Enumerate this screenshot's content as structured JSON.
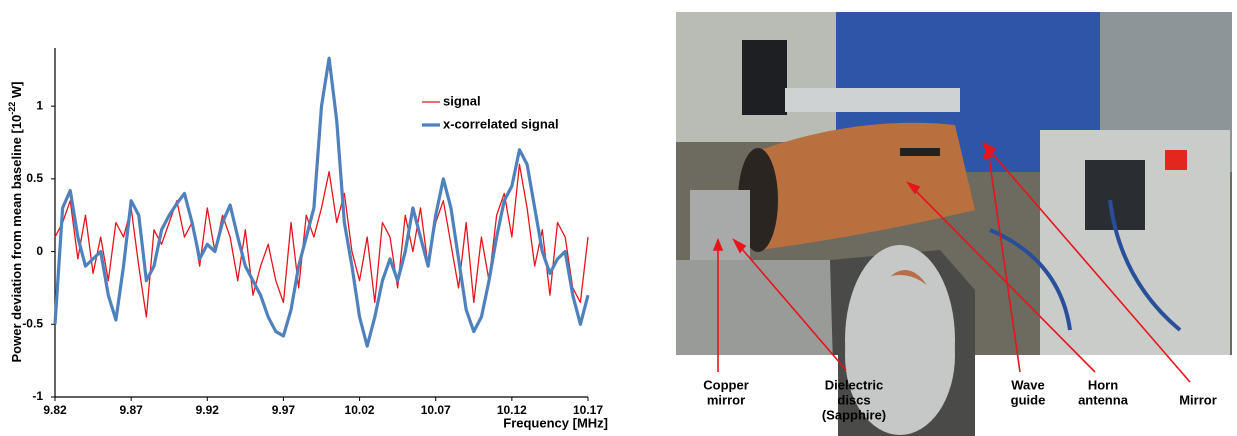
{
  "chart_data": {
    "type": "line",
    "ylabel": "Power deviation from mean baseline  [10",
    "ylabel_exponent": "-22",
    "ylabel_unit": " W]",
    "xlabel": "Frequency  [MHz]",
    "x": [
      9.82,
      9.825,
      9.83,
      9.835,
      9.84,
      9.845,
      9.85,
      9.855,
      9.86,
      9.865,
      9.87,
      9.875,
      9.88,
      9.885,
      9.89,
      9.895,
      9.9,
      9.905,
      9.91,
      9.915,
      9.92,
      9.925,
      9.93,
      9.935,
      9.94,
      9.945,
      9.95,
      9.955,
      9.96,
      9.965,
      9.97,
      9.975,
      9.98,
      9.985,
      9.99,
      9.995,
      10.0,
      10.005,
      10.01,
      10.015,
      10.02,
      10.025,
      10.03,
      10.035,
      10.04,
      10.045,
      10.05,
      10.055,
      10.06,
      10.065,
      10.07,
      10.075,
      10.08,
      10.085,
      10.09,
      10.095,
      10.1,
      10.105,
      10.11,
      10.115,
      10.12,
      10.125,
      10.13,
      10.135,
      10.14,
      10.145,
      10.15,
      10.155,
      10.16,
      10.165,
      10.17
    ],
    "series": [
      {
        "name": "signal",
        "color": "#e8141c",
        "width": 1.3,
        "values": [
          0.1,
          0.2,
          0.35,
          -0.05,
          0.25,
          -0.15,
          0.1,
          -0.2,
          0.2,
          0.1,
          0.3,
          -0.1,
          -0.45,
          0.15,
          0.05,
          0.2,
          0.35,
          0.1,
          0.2,
          -0.1,
          0.3,
          0.0,
          0.25,
          0.1,
          -0.2,
          0.15,
          -0.3,
          -0.1,
          0.05,
          -0.2,
          -0.35,
          0.2,
          -0.25,
          0.25,
          0.1,
          0.3,
          0.55,
          0.2,
          0.4,
          0.0,
          -0.2,
          0.1,
          -0.35,
          0.2,
          0.1,
          -0.25,
          0.25,
          0.0,
          0.3,
          -0.1,
          0.2,
          0.35,
          0.05,
          -0.25,
          0.2,
          -0.35,
          0.1,
          -0.2,
          0.25,
          0.4,
          0.1,
          0.6,
          0.3,
          -0.1,
          0.15,
          -0.3,
          0.2,
          0.1,
          -0.25,
          -0.35,
          0.1
        ]
      },
      {
        "name": "x-correlated signal",
        "color": "#4f81bd",
        "width": 3.2,
        "values": [
          -0.5,
          0.3,
          0.42,
          0.1,
          -0.1,
          -0.05,
          0.0,
          -0.3,
          -0.47,
          -0.1,
          0.35,
          0.25,
          -0.2,
          -0.1,
          0.15,
          0.25,
          0.33,
          0.4,
          0.2,
          -0.05,
          0.05,
          0.0,
          0.2,
          0.32,
          0.1,
          -0.1,
          -0.2,
          -0.3,
          -0.45,
          -0.55,
          -0.58,
          -0.4,
          -0.1,
          0.1,
          0.3,
          1.0,
          1.33,
          0.9,
          0.2,
          -0.1,
          -0.45,
          -0.65,
          -0.45,
          -0.2,
          -0.05,
          -0.2,
          0.0,
          0.3,
          0.1,
          -0.1,
          0.25,
          0.5,
          0.3,
          -0.05,
          -0.4,
          -0.55,
          -0.45,
          -0.2,
          0.1,
          0.35,
          0.45,
          0.7,
          0.6,
          0.3,
          0.0,
          -0.15,
          -0.05,
          0.0,
          -0.3,
          -0.5,
          -0.3
        ]
      }
    ],
    "xlim": [
      9.82,
      10.17
    ],
    "xticks": [
      9.82,
      9.87,
      9.92,
      9.97,
      10.02,
      10.07,
      10.12,
      10.17
    ],
    "ylim": [
      -1,
      1.4
    ],
    "yticks": [
      -1,
      -0.5,
      0,
      0.5,
      1
    ],
    "grid": false,
    "legend": "upper right"
  },
  "photo_labels": [
    {
      "lines": [
        "Copper",
        "mirror"
      ]
    },
    {
      "lines": [
        "Dielectric",
        "discs",
        "(Sapphire)"
      ]
    },
    {
      "lines": [
        "Wave",
        "guide"
      ]
    },
    {
      "lines": [
        "Horn",
        "antenna"
      ]
    },
    {
      "lines": [
        "Mirror"
      ]
    }
  ]
}
